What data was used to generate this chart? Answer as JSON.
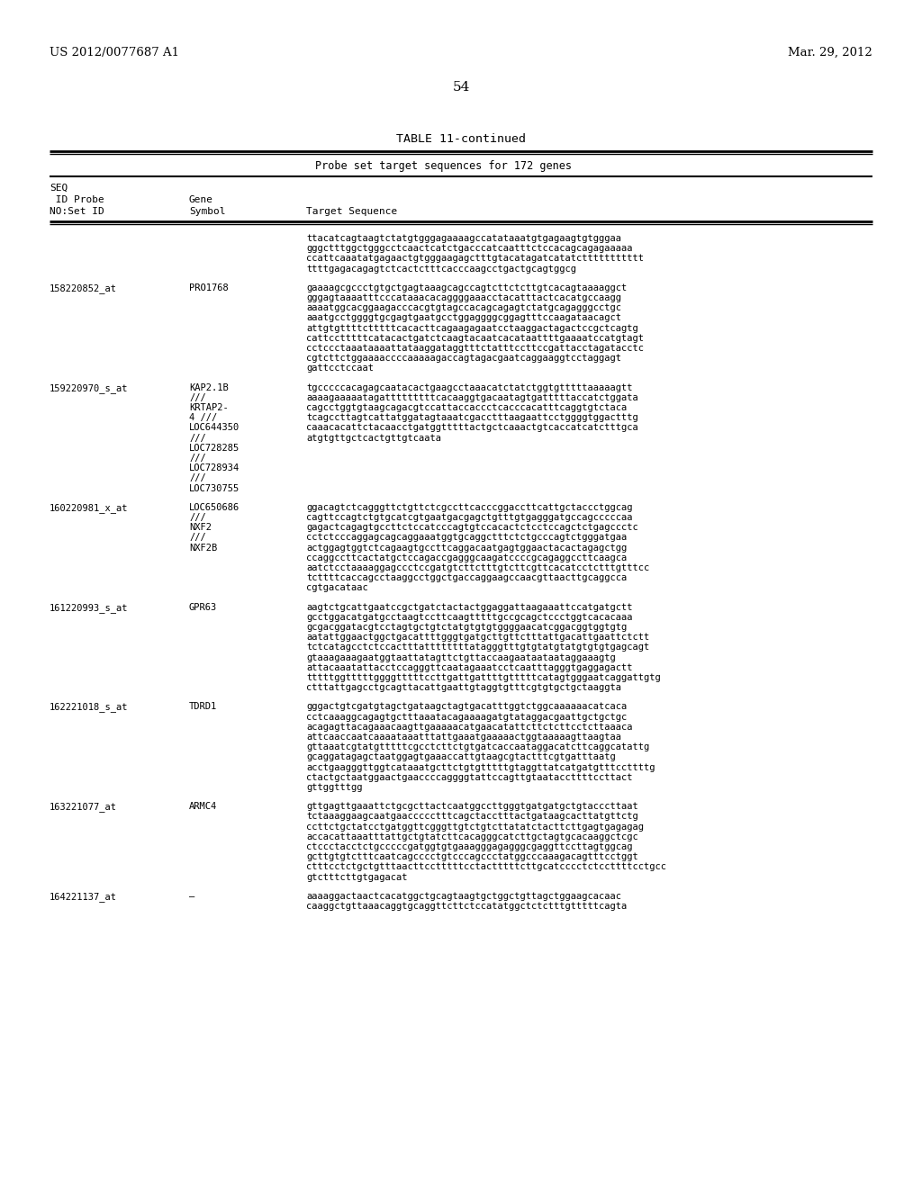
{
  "background_color": "#ffffff",
  "header_left": "US 2012/0077687 A1",
  "header_right": "Mar. 29, 2012",
  "page_number": "54",
  "table_title": "TABLE 11-continued",
  "table_subtitle": "Probe set target sequences for 172 genes",
  "rows": [
    {
      "seq_id": "",
      "gene": "",
      "sequence": "ttacatcagtaagtctatgtgggagaaaagccatataaatgtgagaagtgtgggaa\ngggctttggctgggcctcaactcatctgacccatcaatttctccacagcagagaaaaa\nccattcaaatatgagaactgtgggaagagctttgtacatagatcatatcttttttttttt\nttttgagacagagtctcactctttcacccaagcctgactgcagtggcg"
    },
    {
      "seq_id": "158220852_at",
      "gene": "PRO1768",
      "sequence": "gaaaagcgccctgtgctgagtaaagcagccagtcttctcttgtcacagtaaaaggct\ngggagtaaaatttcccataaacacaggggaaacctacatttactcacatgccaagg\naaaatggcacggaagacccacgtgtagccacagcagagtctatgcagagggcctgc\naaatgcctggggtgcgagtgaatgcctggaggggcggagtttccaagataacagct\nattgtgttttctttttcacacttcagaagagaatcctaaggactagactccgctcagtg\ncattcctttttcatacactgatctcaagtacaatcacataattttgaaaatccatgtagt\ncctccctaaataaaattataaggataggtttctatttccttccgattacctagatacctc\ncgtcttctggaaaaccccaaaaagaccagtagacgaatcaggaaggtcctaggagt\ngattcctccaat"
    },
    {
      "seq_id": "159220970_s_at",
      "gene": "KAP2.1B\n///\nKRTAP2-\n4 ///\nLOC644350\n///\nLOC728285\n///\nLOC728934\n///\nLOC730755",
      "sequence": "tgcccccacagagcaatacactgaagcctaaacatctatctggtgtttttaaaaagtt\naaaagaaaaatagatttttttttcacaaggtgacaatagtgatttttaccatctggata\ncagcctggtgtaagcagacgtccattaccaccctcacccacatttcaggtgtctaca\ntcagccttagtcattatggatagtaaatcgacctttaagaattcctggggtggactttg\ncaaacacattctacaacctgatggtttttactgctcaaactgtcaccatcatctttgca\natgtgttgctcactgttgtcaata"
    },
    {
      "seq_id": "160220981_x_at",
      "gene": "LOC650686\n///\nNXF2\n///\nNXF2B",
      "sequence": "ggacagtctcagggttctgttctcgccttcacccggaccttcattgctaccctggcag\ncagttccagtctgtgcatcgtgaatgacgagctgtttgtgagggatgccagcccccaa\ngagactcagagtgccttctccatcccagtgtccacactctcctccagctctgagccctc\ncctctcccaggagcagcaggaaatggtgcaggctttctctgcccagtctgggatgaa\nactggagtggtctcagaagtgccttcaggacaatgagtggaactacactagagctgg\nccaggccttcactatgctccagaccgagggcaagatccccgcagaggccttcaagca\naatctcctaaaaggagccctccgatgtcttctttgtcttcgttcacatcctctttgtttcc\ntcttttcaccagcctaaggcctggctgaccaggaagccaacgttaacttgcaggcca\ncgtgacataac"
    },
    {
      "seq_id": "161220993_s_at",
      "gene": "GPR63",
      "sequence": "aagtctgcattgaatccgctgatctactactggaggattaagaaattccatgatgctt\ngcctggacatgatgcctaagtccttcaagtttttgccgcagctccctggtcacacaaa\ngcgacggatacgtcctagtgctgtctatgtgtgtggggaacatcggacggtggtgtg\naatattggaactggctgacattttgggtgatgcttgttctttattgacattgaattctctt\ntctcatagcctctccactttattttttttatagggtttgtgtatgtatgtgtgtgagcagt\ngtaaagaaagaatggtaattatagttctgttaccaagaataataataggaaagtg\nattacaaatattacctccagggttcaatagaaatcctcaatttagggtgaggagactt\ntttttggtttttggggtttttccttgattgattttgtttttcatagtgggaatcaggattgtg\nctttattgagcctgcagttacattgaattgtaggtgtttcgtgtgctgctaaggta"
    },
    {
      "seq_id": "162221018_s_at",
      "gene": "TDRD1",
      "sequence": "gggactgtcgatgtagctgataagctagtgacatttggtctggcaaaaaacatcaca\ncctcaaaggcagagtgctttaaatacagaaaagatgtataggacgaattgctgctgc\nacagagttacagaaacaagttgaaaaacatgaacatattcttctcttcctcttaaaca\nattcaaccaatcaaaataaatttattgaaatgaaaaactggtaaaaagttaagtaa\ngttaaatcgtatgtttttcgcctcttctgtgatcaccaataggacatcttcaggcatattg\ngcaggatagagctaatggagtgaaaccattgtaagcgtactttcgtgatttaatg\nacctgaagggttggtcataaatgcttctgtgtttttgtaggttatcatgatgtttccttttg\nctactgctaatggaactgaaccccaggggtattccagttgtaataccttttccttact\ngttggtttgg"
    },
    {
      "seq_id": "163221077_at",
      "gene": "ARMC4",
      "sequence": "gttgagttgaaattctgcgcttactcaatggccttgggtgatgatgctgtacccttaat\ntctaaaggaagcaatgaaccccctttcagctacctttactgataagcacttatgttctg\nccttctgctatcctgatggttcgggttgtctgtcttatatctacttcttgagtgagagag\naccacattaaatttattgctgtatcttcacagggcatcttgctagtgcacaaggctcgc\nctccctacctctgcccccgatggtgtgaaagggagagggcgaggttccttagtggcag\ngcttgtgtctttcaatcagcccctgtcccagccctatggcccaaagacagtttcctggt\nctttcctctgctgtttaacttcctttttcctactttttcttgcatcccctctccttttcctgcc\ngtctttcttgtgagacat"
    },
    {
      "seq_id": "164221137_at",
      "gene": "–",
      "sequence": "aaaaggactaactcacatggctgcagtaagtgctggctgttagctggaagcacaac\ncaaggctgttaaacaggtgcaggttcttctccatatggctctctttgtttttcagta"
    }
  ]
}
